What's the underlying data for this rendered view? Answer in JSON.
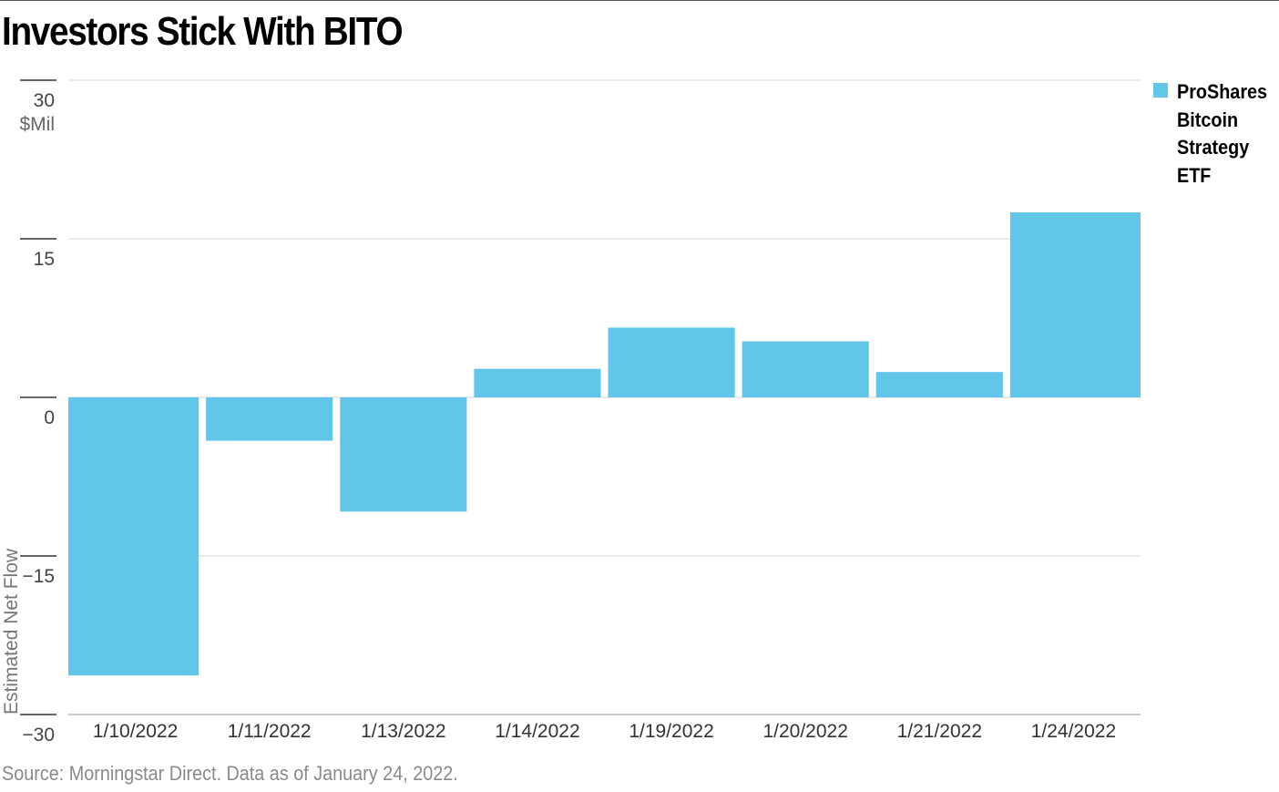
{
  "title": "Investors Stick With BITO",
  "source": "Source: Morningstar Direct. Data as of January 24, 2022.",
  "chart_data": {
    "type": "bar",
    "title": "Investors Stick With BITO",
    "ylabel": "Estimated Net Flow",
    "yunit": "$Mil",
    "ylim": [
      -30,
      30
    ],
    "yticks": [
      30,
      15,
      0,
      -15,
      -30
    ],
    "ytick_labels": [
      "30",
      "15",
      "0",
      "−15",
      "−30"
    ],
    "grid": true,
    "legend_position": "top-right",
    "categories": [
      "1/10/2022",
      "1/11/2022",
      "1/13/2022",
      "1/14/2022",
      "1/19/2022",
      "1/20/2022",
      "1/21/2022",
      "1/24/2022"
    ],
    "series": [
      {
        "name": "ProShares Bitcoin Strategy ETF",
        "color": "#62C6E9",
        "values": [
          -26.3,
          -4.1,
          -10.8,
          2.7,
          6.6,
          5.3,
          2.4,
          17.5
        ]
      }
    ]
  }
}
